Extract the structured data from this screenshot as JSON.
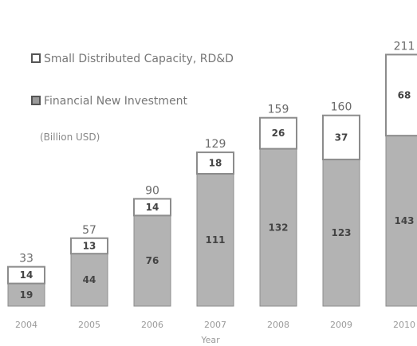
{
  "chart_data": {
    "type": "bar",
    "stacked": true,
    "categories": [
      "2004",
      "2005",
      "2006",
      "2007",
      "2008",
      "2009",
      "2010"
    ],
    "series": [
      {
        "name": "Financial New Investment",
        "values": [
          19,
          44,
          76,
          111,
          132,
          123,
          143
        ]
      },
      {
        "name": "Small Distributed Capacity, RD&D",
        "values": [
          14,
          13,
          14,
          18,
          26,
          37,
          68
        ]
      }
    ],
    "totals": [
      33,
      57,
      90,
      129,
      159,
      160,
      211
    ],
    "totals_display": [
      "33",
      "57",
      "90",
      "129",
      "159",
      "160",
      "211"
    ],
    "ylabel": "(Billion USD)",
    "xlabel": "Year",
    "ylim": [
      0,
      220
    ],
    "grid": false,
    "legend_placement": "top-left",
    "colors": {
      "financial": "#b3b3b3",
      "small": "#ffffff",
      "outline": "#8c8c8c"
    }
  }
}
